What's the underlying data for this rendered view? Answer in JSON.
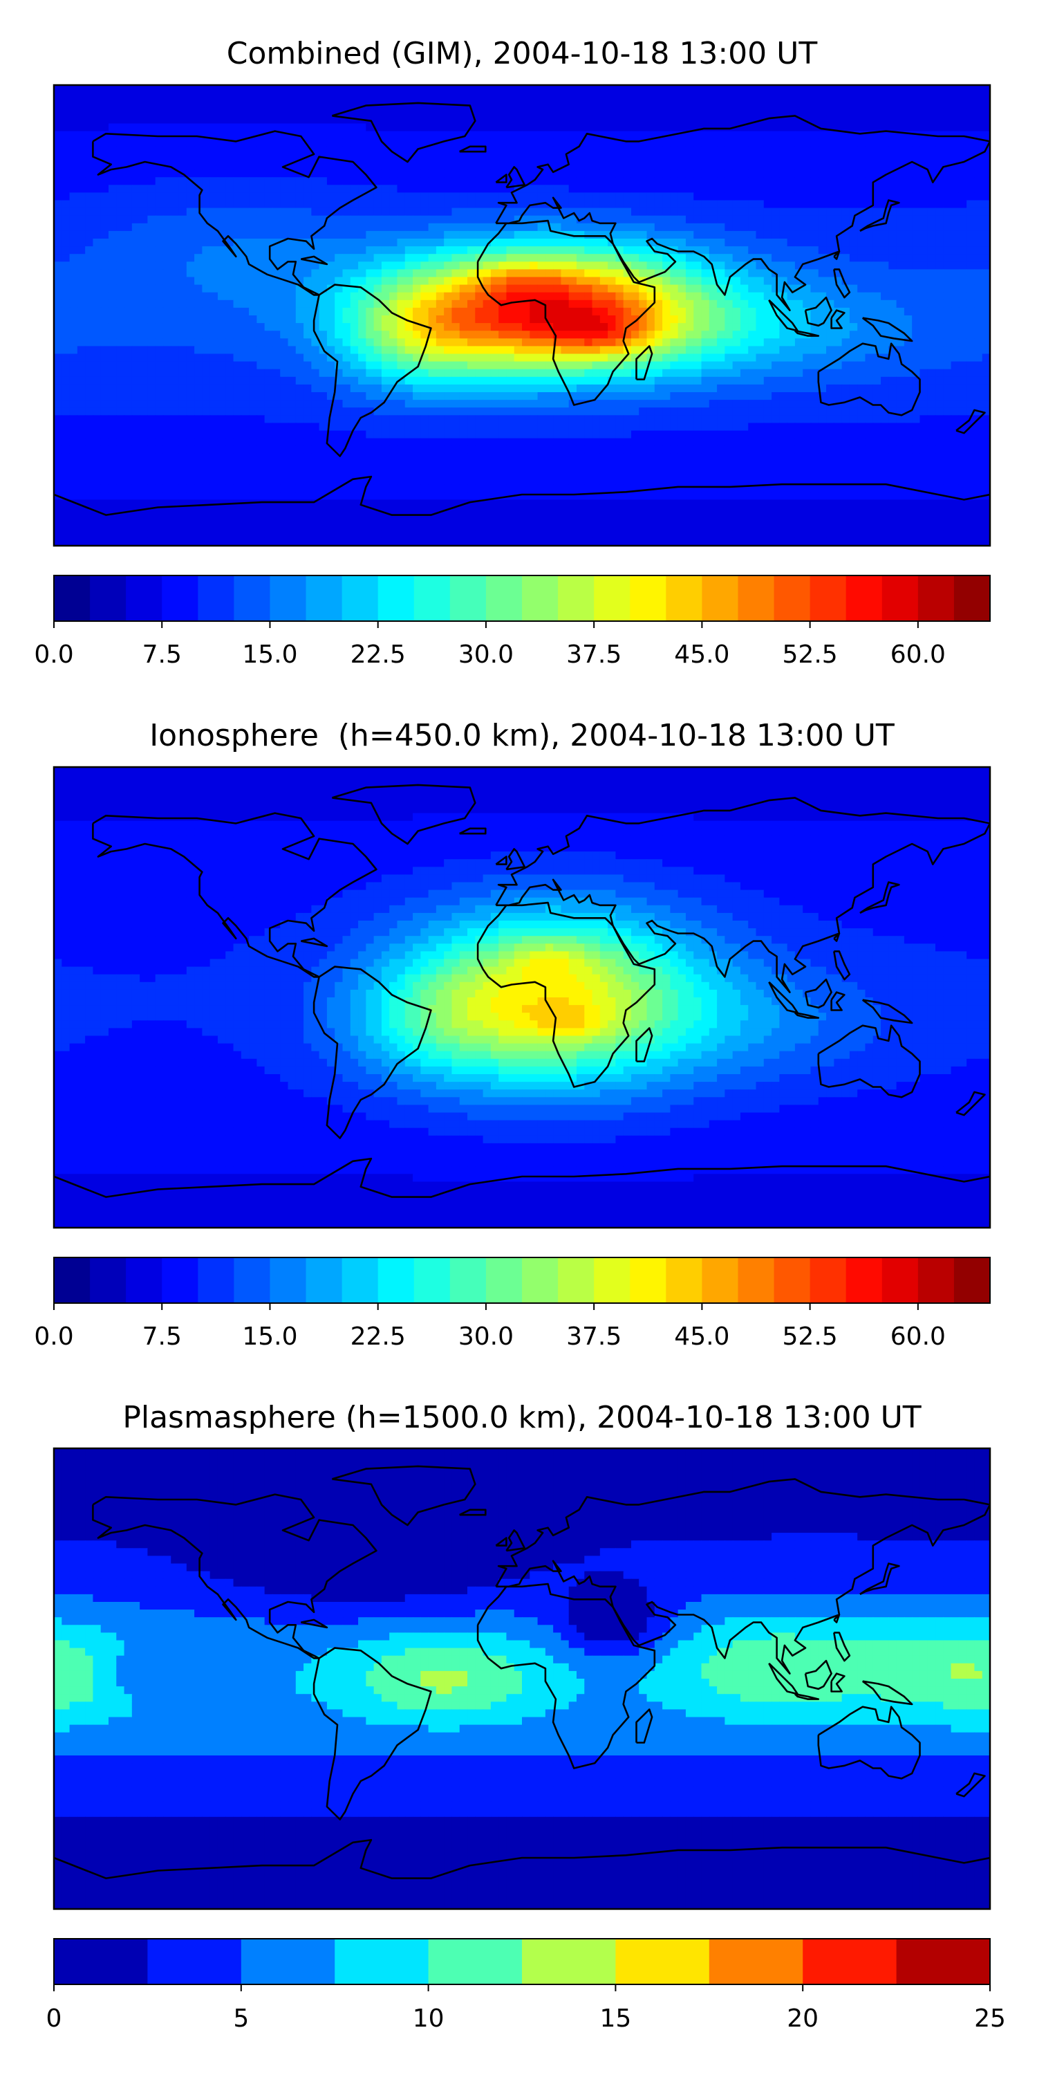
{
  "chart_data": [
    {
      "type": "heatmap",
      "subtype": "filled-contour-world-map",
      "title": "Combined (GIM), 2004-10-18 13:00 UT",
      "colormap": "jet",
      "xlabel": "",
      "ylabel": "",
      "colorbar": {
        "min": 0,
        "max": 65,
        "step": 2.5,
        "ticks": [
          0.0,
          7.5,
          15.0,
          22.5,
          30.0,
          37.5,
          45.0,
          52.5,
          60.0
        ],
        "tick_labels": [
          "0.0",
          "7.5",
          "15.0",
          "22.5",
          "30.0",
          "37.5",
          "45.0",
          "52.5",
          "60.0"
        ]
      },
      "field_peaks": [
        {
          "lon": 10,
          "lat": 3,
          "value": 57,
          "region": "central Africa"
        },
        {
          "lon": 0,
          "lat": 13,
          "value": 52,
          "region": "west Africa"
        },
        {
          "lon": 30,
          "lat": -8,
          "value": 55,
          "region": "east Africa"
        },
        {
          "lon": -35,
          "lat": -5,
          "value": 40,
          "region": "equatorial Atlantic"
        }
      ]
    },
    {
      "type": "heatmap",
      "subtype": "filled-contour-world-map",
      "title": "Ionosphere  (h=450.0 km), 2004-10-18 13:00 UT",
      "colormap": "jet",
      "xlabel": "",
      "ylabel": "",
      "colorbar": {
        "min": 0,
        "max": 65,
        "step": 2.5,
        "ticks": [
          0.0,
          7.5,
          15.0,
          22.5,
          30.0,
          37.5,
          45.0,
          52.5,
          60.0
        ],
        "tick_labels": [
          "0.0",
          "7.5",
          "15.0",
          "22.5",
          "30.0",
          "37.5",
          "45.0",
          "52.5",
          "60.0"
        ]
      },
      "field_peaks": [
        {
          "lon": 10,
          "lat": 15,
          "value": 45,
          "region": "north Africa"
        },
        {
          "lon": 15,
          "lat": -10,
          "value": 45,
          "region": "southern Africa"
        },
        {
          "lon": -30,
          "lat": -10,
          "value": 30,
          "region": "South Atlantic"
        }
      ]
    },
    {
      "type": "heatmap",
      "subtype": "filled-contour-world-map",
      "title": "Plasmasphere (h=1500.0 km), 2004-10-18 13:00 UT",
      "colormap": "jet",
      "xlabel": "",
      "ylabel": "",
      "colorbar": {
        "min": 0,
        "max": 25,
        "step": 2.5,
        "ticks": [
          0,
          5,
          10,
          15,
          20,
          25
        ],
        "tick_labels": [
          "0",
          "5",
          "10",
          "15",
          "20",
          "25"
        ]
      },
      "field_peaks": [
        {
          "lon": -30,
          "lat": 0,
          "value": 13,
          "region": "equatorial Atlantic"
        },
        {
          "lon": 95,
          "lat": 5,
          "value": 12,
          "region": "South-East Asia"
        },
        {
          "lon": 155,
          "lat": 5,
          "value": 11,
          "region": "West Pacific"
        },
        {
          "lon": -175,
          "lat": 0,
          "value": 10,
          "region": "Central Pacific"
        }
      ]
    }
  ]
}
